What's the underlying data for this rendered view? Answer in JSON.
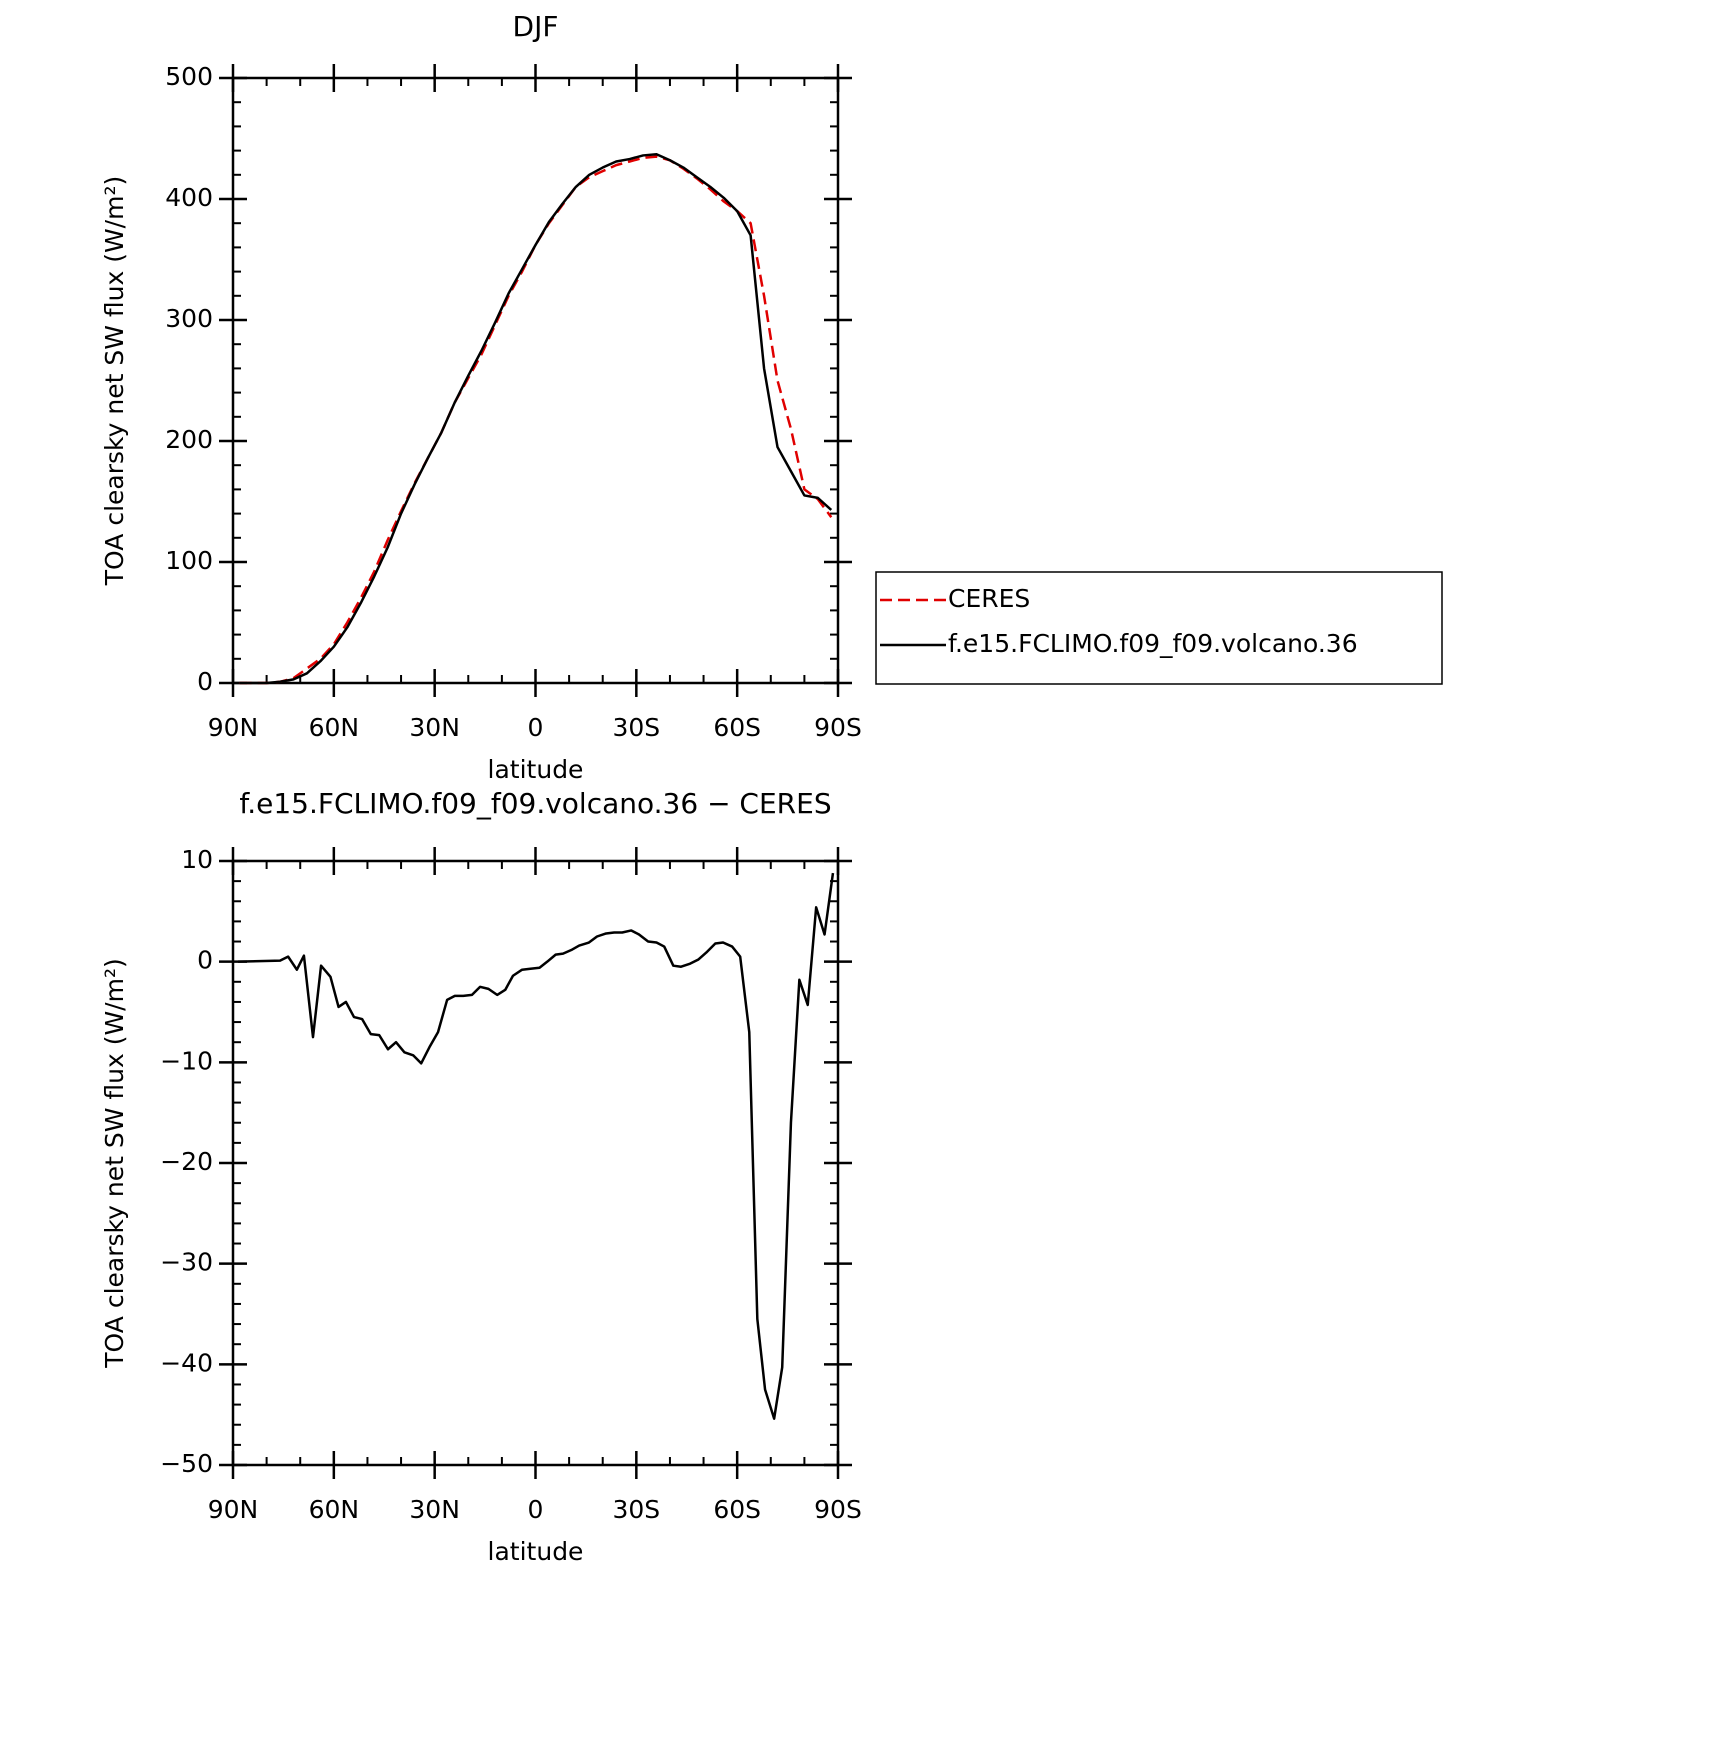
{
  "chart_data": [
    {
      "type": "line",
      "title": "DJF",
      "xlabel": "latitude",
      "ylabel": "TOA clearsky net SW flux (W/m²)",
      "x": [
        88,
        84,
        80,
        76,
        72,
        68,
        64,
        60,
        56,
        52,
        48,
        44,
        40,
        36,
        32,
        28,
        24,
        20,
        16,
        12,
        8,
        4,
        0,
        -4,
        -8,
        -12,
        -16,
        -20,
        -24,
        -28,
        -32,
        -36,
        -40,
        -44,
        -48,
        -52,
        -56,
        -60,
        -64,
        -68,
        -72,
        -76,
        -80,
        -84,
        -88
      ],
      "series": [
        {
          "name": "CERES",
          "color": "#e00000",
          "dash": "dashed",
          "values": [
            0,
            0,
            0,
            1,
            4,
            12,
            20,
            32,
            50,
            70,
            92,
            118,
            142,
            165,
            186,
            207,
            232,
            252,
            272,
            296,
            320,
            340,
            362,
            380,
            395,
            410,
            418,
            423,
            428,
            431,
            434,
            435,
            432,
            425,
            417,
            408,
            398,
            390,
            380,
            320,
            250,
            210,
            160,
            152,
            137
          ]
        },
        {
          "name": "f.e15.FCLIMO.f09_f09.volcano.36",
          "color": "#000000",
          "dash": "solid",
          "values": [
            0,
            0,
            0,
            1,
            3,
            8,
            18,
            30,
            46,
            66,
            88,
            112,
            140,
            164,
            186,
            207,
            232,
            254,
            275,
            298,
            322,
            342,
            362,
            381,
            396,
            410,
            420,
            426,
            431,
            433,
            436,
            437,
            432,
            426,
            418,
            410,
            401,
            390,
            370,
            260,
            195,
            175,
            155,
            153,
            143
          ]
        }
      ],
      "xlim": [
        90,
        -90
      ],
      "xticks": [
        {
          "value": 90,
          "label": "90N"
        },
        {
          "value": 60,
          "label": "60N"
        },
        {
          "value": 30,
          "label": "30N"
        },
        0,
        {
          "value": -30,
          "label": "30S"
        },
        {
          "value": -60,
          "label": "60S"
        },
        {
          "value": -90,
          "label": "90S"
        }
      ],
      "ylim": [
        0,
        500
      ],
      "yticks": [
        0,
        100,
        200,
        300,
        400,
        500
      ],
      "legend": "outside-right"
    },
    {
      "type": "line",
      "title": "f.e15.FCLIMO.f09_f09.volcano.36 − CERES",
      "xlabel": "latitude",
      "ylabel": "TOA clearsky net SW flux (W/m²)",
      "x": [
        88.5,
        76,
        73.6,
        71,
        68.9,
        66.2,
        63.8,
        61,
        58.6,
        56.4,
        54,
        51.6,
        49,
        46.5,
        43.9,
        41.5,
        39,
        36.4,
        34,
        31.4,
        29,
        26.3,
        24,
        21.5,
        18.9,
        16.5,
        14,
        11.4,
        9,
        6.7,
        4,
        1.5,
        -1.2,
        -3.5,
        -6,
        -8.2,
        -10.9,
        -13,
        -15.9,
        -18.3,
        -21,
        -23.4,
        -25.8,
        -28.5,
        -30.8,
        -33.5,
        -36,
        -38.3,
        -41,
        -43.3,
        -46,
        -48.4,
        -50.8,
        -53.5,
        -55.8,
        -58.5,
        -60.9,
        -63.6,
        -66,
        -68.3,
        -71,
        -73.4,
        -76,
        -78.5,
        -81,
        -83.5,
        -86,
        -88.5
      ],
      "series": [
        {
          "color": "#000000",
          "dash": "solid",
          "values": [
            0,
            0.1,
            0.5,
            -0.8,
            0.6,
            -7.5,
            -0.4,
            -1.5,
            -4.5,
            -4,
            -5.5,
            -5.7,
            -7.2,
            -7.3,
            -8.7,
            -8,
            -9,
            -9.3,
            -10.1,
            -8.4,
            -7,
            -3.8,
            -3.4,
            -3.4,
            -3.3,
            -2.5,
            -2.7,
            -3.3,
            -2.8,
            -1.4,
            -0.8,
            -0.7,
            -0.6,
            0,
            0.7,
            0.8,
            1.2,
            1.6,
            1.9,
            2.5,
            2.8,
            2.9,
            2.9,
            3.1,
            2.7,
            2,
            1.9,
            1.5,
            -0.4,
            -0.5,
            -0.2,
            0.2,
            0.9,
            1.8,
            1.9,
            1.5,
            0.5,
            -7,
            -35.5,
            -42.5,
            -45.4,
            -40.3,
            -16,
            -1.8,
            -4.3,
            5.4,
            2.7,
            8.8
          ]
        }
      ],
      "xlim": [
        90,
        -90
      ],
      "xticks": [
        {
          "value": 90,
          "label": "90N"
        },
        {
          "value": 60,
          "label": "60N"
        },
        {
          "value": 30,
          "label": "30N"
        },
        0,
        {
          "value": -30,
          "label": "30S"
        },
        {
          "value": -60,
          "label": "60S"
        },
        {
          "value": -90,
          "label": "90S"
        }
      ],
      "ylim": [
        -50,
        10
      ],
      "yticks": [
        {
          "value": -50,
          "label": "−50"
        },
        {
          "value": -40,
          "label": "−40"
        },
        {
          "value": -30,
          "label": "−30"
        },
        {
          "value": -20,
          "label": "−20"
        },
        {
          "value": -10,
          "label": "−10"
        },
        0,
        10
      ]
    }
  ]
}
